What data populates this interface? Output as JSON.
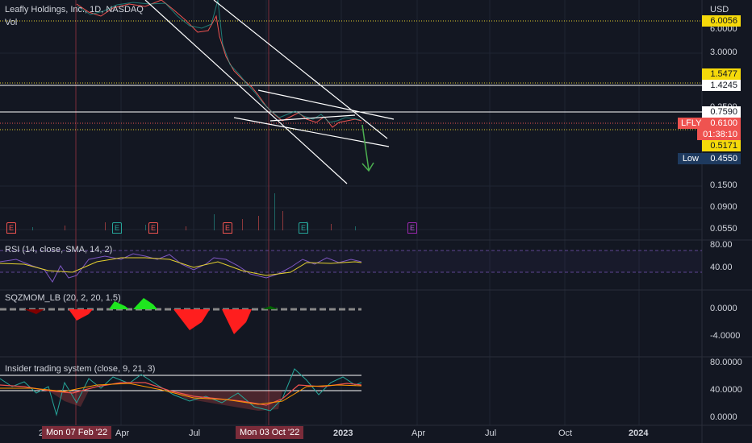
{
  "header": {
    "title": "Leafly Holdings, Inc., 1D, NASDAQ",
    "vol_label": "Vol",
    "currency": "USD"
  },
  "price_axis": {
    "ticks": [
      "6.0000",
      "3.0000",
      "0.2500",
      "0.1500",
      "0.0900",
      "0.0550"
    ],
    "labels": [
      {
        "text": "6.0056",
        "bg": "#f5d90a",
        "fg": "#131722"
      },
      {
        "text": "1.5477",
        "bg": "#f5d90a",
        "fg": "#131722"
      },
      {
        "text": "1.4245",
        "bg": "#ffffff",
        "fg": "#131722"
      },
      {
        "text": "0.7590",
        "bg": "#ffffff",
        "fg": "#131722"
      },
      {
        "text": "0.6100",
        "bg": "#ef5350",
        "fg": "#ffffff"
      },
      {
        "text": "01:38:10",
        "bg": "#ef5350",
        "fg": "#ffffff"
      },
      {
        "text": "0.5171",
        "bg": "#f5d90a",
        "fg": "#131722"
      },
      {
        "text": "0.4550",
        "bg": "#1e3a5f",
        "fg": "#ffffff"
      }
    ],
    "symbol_tag": "LFLY",
    "low_tag": "Low"
  },
  "events": [
    "E",
    "E",
    "E",
    "E",
    "E",
    "E"
  ],
  "rsi": {
    "label": "RSI (14, close, SMA, 14, 2)",
    "ticks": [
      "80.00",
      "40.00"
    ]
  },
  "sqz": {
    "label": "SQZMOM_LB (20, 2, 20, 1.5)",
    "ticks": [
      "0.0000",
      "-4.0000"
    ]
  },
  "insider": {
    "label": "Insider trading system (close, 9, 21, 3)",
    "ticks": [
      "80.0000",
      "40.0000",
      "0.0000"
    ]
  },
  "time_axis": {
    "labels": [
      "2022",
      "Apr",
      "Jul",
      "2023",
      "Apr",
      "Jul",
      "Oct",
      "2024"
    ],
    "highlight_1": "Mon 07 Feb '22",
    "highlight_2": "Mon 03 Oct '22"
  },
  "colors": {
    "background": "#131722",
    "up": "#26a69a",
    "down": "#ef5350",
    "rsi_line": "#7e57c2",
    "rsi_ma": "#e6d22e",
    "event_earnings": "#ef5350",
    "event_dividend": "#26a69a",
    "event_future": "#9c27b0"
  }
}
